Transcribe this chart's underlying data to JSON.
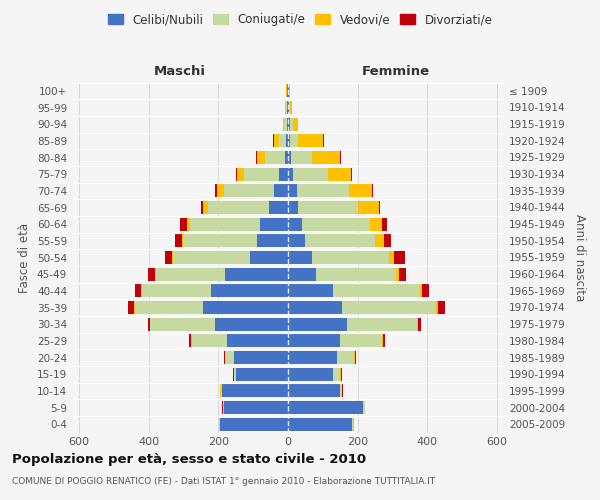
{
  "age_groups": [
    "0-4",
    "5-9",
    "10-14",
    "15-19",
    "20-24",
    "25-29",
    "30-34",
    "35-39",
    "40-44",
    "45-49",
    "50-54",
    "55-59",
    "60-64",
    "65-69",
    "70-74",
    "75-79",
    "80-84",
    "85-89",
    "90-94",
    "95-99",
    "100+"
  ],
  "birth_years": [
    "2005-2009",
    "2000-2004",
    "1995-1999",
    "1990-1994",
    "1985-1989",
    "1980-1984",
    "1975-1979",
    "1970-1974",
    "1965-1969",
    "1960-1964",
    "1955-1959",
    "1950-1954",
    "1945-1949",
    "1940-1944",
    "1935-1939",
    "1930-1934",
    "1925-1929",
    "1920-1924",
    "1915-1919",
    "1910-1914",
    "≤ 1909"
  ],
  "maschi_celibi": [
    195,
    185,
    190,
    150,
    155,
    175,
    210,
    245,
    220,
    180,
    110,
    90,
    80,
    55,
    40,
    25,
    10,
    5,
    4,
    3,
    2
  ],
  "maschi_coniugati": [
    2,
    2,
    3,
    5,
    25,
    100,
    185,
    195,
    200,
    200,
    220,
    210,
    200,
    175,
    145,
    100,
    55,
    20,
    8,
    4,
    2
  ],
  "maschi_vedovi": [
    1,
    1,
    1,
    1,
    2,
    3,
    2,
    3,
    3,
    3,
    3,
    5,
    10,
    15,
    20,
    20,
    25,
    15,
    3,
    2,
    1
  ],
  "maschi_divorziati": [
    1,
    1,
    1,
    2,
    3,
    5,
    5,
    15,
    15,
    18,
    20,
    20,
    20,
    5,
    5,
    3,
    3,
    2,
    0,
    0,
    0
  ],
  "femmine_celibi": [
    185,
    215,
    150,
    130,
    140,
    150,
    170,
    155,
    130,
    80,
    70,
    50,
    40,
    30,
    25,
    15,
    8,
    5,
    5,
    3,
    2
  ],
  "femmine_coniugati": [
    3,
    5,
    5,
    20,
    50,
    120,
    200,
    270,
    250,
    230,
    220,
    200,
    195,
    170,
    150,
    100,
    60,
    25,
    8,
    4,
    2
  ],
  "femmine_vedovi": [
    1,
    1,
    1,
    2,
    3,
    3,
    3,
    5,
    5,
    10,
    15,
    25,
    35,
    60,
    65,
    65,
    80,
    70,
    15,
    5,
    3
  ],
  "femmine_divorziati": [
    1,
    1,
    1,
    2,
    3,
    5,
    10,
    20,
    20,
    20,
    30,
    20,
    15,
    5,
    3,
    3,
    3,
    2,
    0,
    0,
    0
  ],
  "colors": {
    "celibi": "#4472c4",
    "coniugati": "#c5d9a0",
    "vedovi": "#ffc000",
    "divorziati": "#c0000b"
  },
  "xlim": 620,
  "title": "Popolazione per età, sesso e stato civile - 2010",
  "subtitle": "COMUNE DI POGGIO RENATICO (FE) - Dati ISTAT 1° gennaio 2010 - Elaborazione TUTTITALIA.IT",
  "ylabel_left": "Fasce di età",
  "ylabel_right": "Anni di nascita",
  "xlabel_left": "Maschi",
  "xlabel_right": "Femmine",
  "background_color": "#f5f5f5",
  "grid_color": "#cccccc"
}
